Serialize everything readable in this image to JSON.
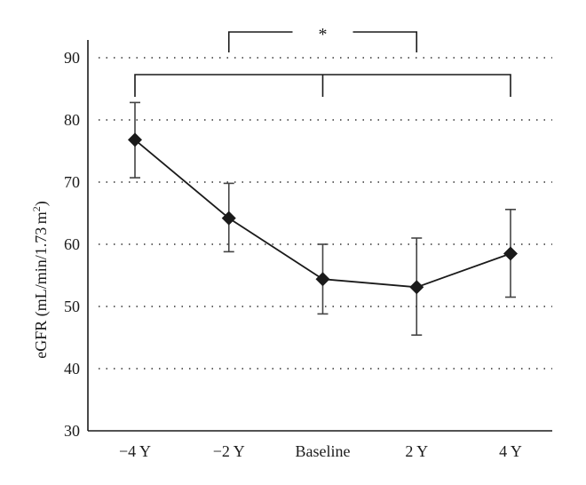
{
  "chart_data": {
    "type": "line",
    "categories": [
      "−4 Y",
      "−2 Y",
      "Baseline",
      "2 Y",
      "4 Y"
    ],
    "ylabel": "eGFR (mL/min/1.73 m²)",
    "ylabel_parts": {
      "main": "eGFR (mL/min/1.73 m",
      "sup": "2",
      "close": ")"
    },
    "ylim": [
      30,
      90
    ],
    "yticks": [
      30,
      40,
      50,
      60,
      70,
      80,
      90
    ],
    "grid": "horizontal dotted",
    "series": [
      {
        "values": [
          76.8,
          64.2,
          54.4,
          53.1,
          58.5
        ],
        "error_upper": [
          82.8,
          69.8,
          60.0,
          61.0,
          65.6
        ],
        "error_lower": [
          70.7,
          58.8,
          48.8,
          45.4,
          51.5
        ],
        "marker": "diamond"
      }
    ],
    "annotations": [
      {
        "label": "*",
        "from": "−2 Y",
        "to": "2 Y"
      },
      {
        "label": "",
        "from": "−4 Y",
        "to": "4 Y",
        "center": "Baseline"
      }
    ]
  }
}
